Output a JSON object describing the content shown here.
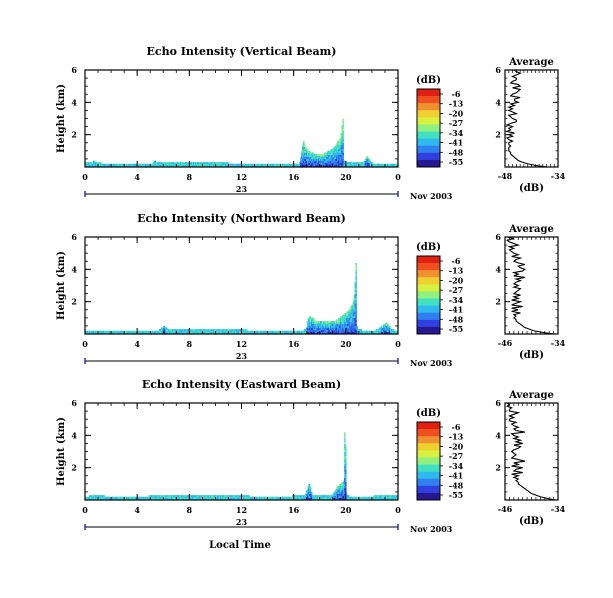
{
  "figure": {
    "bottom_xlabel": "Local Time"
  },
  "colorscale": {
    "unit_label": "(dB)",
    "tick_labels": [
      "-6",
      "-13",
      "-20",
      "-27",
      "-34",
      "-41",
      "-48",
      "-55"
    ],
    "colors": [
      "#e02010",
      "#f05020",
      "#f09030",
      "#f0d030",
      "#d8f040",
      "#90f080",
      "#40e0c0",
      "#30b8f0",
      "#3080f0",
      "#3040e0",
      "#281890"
    ]
  },
  "chart_data": [
    {
      "type": "heatmap",
      "title": "Echo Intensity (Vertical Beam)",
      "ylabel": "Height (km)",
      "ylim": [
        0,
        6
      ],
      "yticks": [
        "2",
        "4",
        "6"
      ],
      "xlim": [
        0,
        24
      ],
      "xticks": [
        "0",
        "4",
        "8",
        "12",
        "16",
        "20",
        "0"
      ],
      "date_label": "23",
      "date_suffix": "Nov 2003",
      "top_height_km": [
        0.3,
        0.3,
        0.3,
        0.3,
        0.3,
        0.3,
        0.3,
        0.2,
        0.4,
        0.4,
        0.3,
        0.3,
        0.3,
        0.3,
        0.3,
        0.3,
        0.2,
        0.2,
        0.2,
        0.2,
        0.2,
        0.2,
        0.2,
        0.2,
        0.2,
        0.2,
        0.2,
        0.2,
        0.2,
        0.2,
        0.2,
        0.2,
        0.2,
        0.2,
        0.2,
        0.2,
        0.2,
        0.2,
        0.2,
        0.2,
        0.2,
        0.2,
        0.2,
        0.2,
        0.2,
        0.2,
        0.2,
        0.2,
        0.2,
        0.2,
        0.2,
        0.2,
        0.2,
        0.2,
        0.2,
        0.2,
        0.2,
        0.2,
        0.2,
        0.2,
        0.2,
        0.2,
        0.2,
        0.2,
        0.2,
        0.2,
        0.2,
        0.3,
        0.4,
        0.4,
        0.3,
        0.3,
        0.3,
        0.3,
        0.3,
        0.3,
        0.3,
        0.3,
        0.3,
        0.3,
        0.3,
        0.3,
        0.3,
        0.3,
        0.3,
        0.3,
        0.3,
        0.3,
        0.3,
        0.3,
        0.3,
        0.3,
        0.3,
        0.3,
        0.3,
        0.3,
        0.3,
        0.3,
        0.3,
        0.3,
        0.3,
        0.3,
        0.3,
        0.3,
        0.3,
        0.3,
        0.3,
        0.3,
        0.3,
        0.3,
        0.3,
        0.3,
        0.3,
        0.3,
        0.3,
        0.3,
        0.3,
        0.3,
        0.3,
        0.3,
        0.3,
        0.3,
        0.3,
        0.3,
        0.3,
        0.3,
        0.3,
        0.3,
        0.3,
        0.3,
        0.3,
        0.3,
        0.3,
        0.3,
        0.3,
        0.3,
        0.3,
        0.3,
        0.3,
        0.3,
        0.3,
        0.3,
        0.2,
        0.2,
        0.2,
        0.2,
        0.2,
        0.2,
        0.2,
        0.2,
        0.2,
        0.2,
        0.2,
        0.2,
        0.2,
        0.2,
        0.2,
        0.2,
        0.2,
        0.2,
        0.2,
        0.2,
        0.2,
        0.2,
        0.2,
        0.2,
        0.2,
        0.2,
        0.2,
        0.2,
        0.2,
        0.2,
        0.2,
        0.2,
        0.2,
        0.2,
        0.2,
        0.2,
        0.2,
        0.2,
        0.2,
        0.2,
        0.2,
        0.2,
        0.2,
        0.2,
        0.2,
        0.2,
        0.2,
        0.2,
        0.2,
        0.2,
        0.2,
        0.2,
        0.2,
        0.2,
        0.2,
        0.2,
        0.2,
        0.2,
        0.2,
        0.2,
        0.2,
        0.2,
        0.2,
        0.2,
        0.2,
        0.2,
        0.2,
        0.2,
        0.2,
        0.2,
        0.3,
        0.6,
        1.0,
        1.4,
        1.6,
        1.4,
        1.2,
        1.2,
        1.1,
        1.0,
        1.0,
        0.9,
        0.9,
        0.9,
        0.8,
        0.8,
        0.8,
        0.8,
        0.8,
        0.8,
        0.8,
        0.8,
        0.8,
        0.8,
        0.8,
        0.9,
        0.9,
        0.9,
        1.0,
        1.0,
        1.0,
        1.1,
        1.1,
        1.2,
        1.2,
        1.3,
        1.4,
        1.5,
        1.6,
        1.7,
        1.8,
        2.1,
        2.6,
        3.0,
        0.4,
        0.3,
        0.3,
        0.3,
        0.3,
        0.3,
        0.3,
        0.3,
        0.3,
        0.3,
        0.3,
        0.3,
        0.3,
        0.3,
        0.3,
        0.3,
        0.3,
        0.3,
        0.3,
        0.3,
        0.4,
        0.5,
        0.6,
        0.7,
        0.6,
        0.5,
        0.4,
        0.3,
        0.3,
        0.2,
        0.2,
        0.2,
        0.2,
        0.2,
        0.2,
        0.2,
        0.2,
        0.2,
        0.2,
        0.2,
        0.2,
        0.2,
        0.2,
        0.2,
        0.2,
        0.2,
        0.2,
        0.2,
        0.2,
        0.2,
        0.2,
        0.2,
        0.2,
        0.2
      ],
      "profile": {
        "title": "Average",
        "xlabel": "(dB)",
        "xlim": [
          -48,
          -34
        ],
        "xticks": [
          "-48",
          "-34"
        ],
        "yticks": [
          "2",
          "4",
          "6"
        ],
        "ylim": [
          0,
          6
        ],
        "values": [
          -37.0,
          -40.0,
          -42.0,
          -43.5,
          -44.5,
          -45.0,
          -45.5,
          -46.0,
          -46.5,
          -46.5,
          -47.0,
          -47.0,
          -47.0,
          -46.5,
          -47.0,
          -47.0,
          -46.0,
          -47.0,
          -47.5,
          -46.0,
          -47.0,
          -45.5,
          -47.5,
          -46.5,
          -47.0,
          -46.0,
          -47.5,
          -46.5,
          -45.0,
          -45.0,
          -46.0,
          -46.5,
          -47.0,
          -45.0,
          -46.0,
          -47.0,
          -46.0,
          -47.0,
          -45.5,
          -46.5,
          -44.5,
          -45.5,
          -45.5,
          -44.0,
          -46.5,
          -46.0,
          -45.0,
          -44.5,
          -44.0,
          -46.0,
          -44.0,
          -44.5,
          -46.5,
          -46.0,
          -45.0,
          -45.0,
          -46.0,
          -45.0,
          -44.0,
          -45.0,
          -45.5
        ]
      }
    },
    {
      "type": "heatmap",
      "title": "Echo Intensity (Northward Beam)",
      "ylabel": "Height (km)",
      "ylim": [
        0,
        6
      ],
      "yticks": [
        "2",
        "4",
        "6"
      ],
      "xlim": [
        0,
        24
      ],
      "xticks": [
        "0",
        "4",
        "8",
        "12",
        "16",
        "20",
        "0"
      ],
      "date_label": "23",
      "date_suffix": "Nov 2003",
      "top_height_km": [
        0.2,
        0.2,
        0.2,
        0.2,
        0.2,
        0.2,
        0.2,
        0.2,
        0.2,
        0.2,
        0.2,
        0.2,
        0.2,
        0.2,
        0.2,
        0.2,
        0.2,
        0.2,
        0.2,
        0.2,
        0.2,
        0.2,
        0.2,
        0.2,
        0.2,
        0.2,
        0.2,
        0.2,
        0.2,
        0.2,
        0.2,
        0.2,
        0.2,
        0.2,
        0.2,
        0.2,
        0.2,
        0.2,
        0.2,
        0.2,
        0.2,
        0.2,
        0.2,
        0.2,
        0.2,
        0.2,
        0.2,
        0.2,
        0.2,
        0.2,
        0.2,
        0.2,
        0.2,
        0.2,
        0.2,
        0.2,
        0.2,
        0.2,
        0.2,
        0.2,
        0.2,
        0.2,
        0.2,
        0.2,
        0.2,
        0.2,
        0.2,
        0.2,
        0.2,
        0.2,
        0.2,
        0.2,
        0.2,
        0.3,
        0.3,
        0.4,
        0.4,
        0.5,
        0.5,
        0.4,
        0.4,
        0.3,
        0.3,
        0.3,
        0.3,
        0.3,
        0.3,
        0.3,
        0.3,
        0.3,
        0.3,
        0.3,
        0.3,
        0.3,
        0.3,
        0.3,
        0.3,
        0.3,
        0.3,
        0.3,
        0.3,
        0.3,
        0.3,
        0.3,
        0.3,
        0.3,
        0.3,
        0.3,
        0.3,
        0.3,
        0.3,
        0.3,
        0.3,
        0.3,
        0.3,
        0.3,
        0.3,
        0.3,
        0.3,
        0.3,
        0.3,
        0.3,
        0.3,
        0.3,
        0.3,
        0.3,
        0.3,
        0.3,
        0.3,
        0.3,
        0.3,
        0.3,
        0.3,
        0.3,
        0.3,
        0.3,
        0.3,
        0.3,
        0.3,
        0.3,
        0.3,
        0.3,
        0.3,
        0.3,
        0.3,
        0.3,
        0.3,
        0.3,
        0.3,
        0.3,
        0.3,
        0.3,
        0.3,
        0.3,
        0.3,
        0.3,
        0.3,
        0.3,
        0.3,
        0.3,
        0.2,
        0.2,
        0.2,
        0.2,
        0.2,
        0.2,
        0.2,
        0.2,
        0.2,
        0.2,
        0.2,
        0.2,
        0.2,
        0.2,
        0.2,
        0.2,
        0.2,
        0.2,
        0.2,
        0.2,
        0.2,
        0.2,
        0.2,
        0.2,
        0.2,
        0.2,
        0.2,
        0.2,
        0.2,
        0.2,
        0.2,
        0.2,
        0.2,
        0.2,
        0.2,
        0.2,
        0.2,
        0.2,
        0.2,
        0.2,
        0.2,
        0.2,
        0.2,
        0.2,
        0.2,
        0.2,
        0.2,
        0.2,
        0.2,
        0.2,
        0.2,
        0.2,
        0.2,
        0.2,
        0.2,
        0.2,
        0.3,
        0.3,
        0.4,
        0.8,
        1.0,
        1.1,
        1.1,
        1.0,
        1.0,
        1.0,
        0.9,
        0.8,
        0.8,
        0.8,
        0.8,
        0.8,
        0.8,
        0.8,
        0.8,
        0.8,
        0.8,
        0.8,
        0.8,
        0.8,
        0.8,
        0.8,
        0.8,
        0.8,
        0.8,
        0.8,
        0.8,
        0.8,
        0.9,
        0.9,
        1.0,
        1.0,
        1.1,
        1.1,
        1.2,
        1.2,
        1.3,
        1.3,
        1.4,
        1.4,
        1.5,
        1.6,
        1.7,
        1.8,
        2.0,
        2.4,
        3.2,
        4.4,
        0.5,
        0.3,
        0.3,
        0.3,
        0.3,
        0.2,
        0.2,
        0.2,
        0.2,
        0.2,
        0.2,
        0.2,
        0.2,
        0.2,
        0.2,
        0.2,
        0.2,
        0.2,
        0.2,
        0.3,
        0.3,
        0.3,
        0.4,
        0.4,
        0.5,
        0.5,
        0.6,
        0.6,
        0.7,
        0.7,
        0.7,
        0.6,
        0.5,
        0.4,
        0.3,
        0.3,
        0.3,
        0.2,
        0.2,
        0.2,
        0.2
      ],
      "profile": {
        "title": "Average",
        "xlabel": "(dB)",
        "xlim": [
          -46,
          -34
        ],
        "xticks": [
          "-46",
          "-34"
        ],
        "yticks": [
          "2",
          "4",
          "6"
        ],
        "ylim": [
          0,
          6
        ],
        "values": [
          -35.0,
          -37.5,
          -39.5,
          -40.5,
          -41.5,
          -42.0,
          -42.5,
          -43.0,
          -43.5,
          -43.5,
          -44.0,
          -43.5,
          -44.0,
          -42.5,
          -44.5,
          -43.0,
          -44.5,
          -42.0,
          -44.5,
          -43.5,
          -42.5,
          -44.5,
          -43.0,
          -44.0,
          -42.5,
          -44.0,
          -43.5,
          -43.0,
          -42.5,
          -44.0,
          -43.0,
          -44.0,
          -43.5,
          -42.5,
          -43.5,
          -41.5,
          -44.0,
          -43.0,
          -44.0,
          -42.0,
          -41.5,
          -42.5,
          -43.0,
          -41.5,
          -43.0,
          -44.0,
          -43.5,
          -42.5,
          -44.5,
          -43.0,
          -44.0,
          -44.5,
          -45.0,
          -44.0,
          -45.0,
          -43.0,
          -44.0,
          -45.0,
          -45.5,
          -44.0,
          -45.5
        ]
      }
    },
    {
      "type": "heatmap",
      "title": "Echo Intensity (Eastward Beam)",
      "ylabel": "Height (km)",
      "ylim": [
        0,
        6
      ],
      "yticks": [
        "2",
        "4",
        "6"
      ],
      "xlim": [
        0,
        24
      ],
      "xticks": [
        "0",
        "4",
        "8",
        "12",
        "16",
        "20",
        "0"
      ],
      "date_label": "23",
      "date_suffix": "Nov 2003",
      "top_height_km": [
        0.2,
        0.2,
        0.2,
        0.2,
        0.3,
        0.3,
        0.3,
        0.3,
        0.3,
        0.3,
        0.3,
        0.3,
        0.3,
        0.3,
        0.3,
        0.3,
        0.3,
        0.3,
        0.3,
        0.3,
        0.2,
        0.2,
        0.2,
        0.2,
        0.2,
        0.2,
        0.2,
        0.2,
        0.2,
        0.2,
        0.2,
        0.2,
        0.2,
        0.2,
        0.2,
        0.2,
        0.2,
        0.2,
        0.2,
        0.2,
        0.2,
        0.2,
        0.2,
        0.2,
        0.2,
        0.2,
        0.2,
        0.2,
        0.2,
        0.2,
        0.2,
        0.2,
        0.2,
        0.2,
        0.2,
        0.2,
        0.2,
        0.2,
        0.2,
        0.2,
        0.2,
        0.2,
        0.2,
        0.2,
        0.2,
        0.3,
        0.3,
        0.3,
        0.3,
        0.3,
        0.3,
        0.3,
        0.3,
        0.3,
        0.3,
        0.3,
        0.3,
        0.3,
        0.3,
        0.3,
        0.3,
        0.3,
        0.3,
        0.3,
        0.3,
        0.3,
        0.3,
        0.3,
        0.3,
        0.3,
        0.3,
        0.3,
        0.3,
        0.3,
        0.3,
        0.3,
        0.3,
        0.3,
        0.3,
        0.3,
        0.3,
        0.3,
        0.3,
        0.3,
        0.3,
        0.3,
        0.3,
        0.3,
        0.3,
        0.3,
        0.3,
        0.3,
        0.3,
        0.3,
        0.3,
        0.3,
        0.3,
        0.3,
        0.3,
        0.3,
        0.3,
        0.3,
        0.3,
        0.3,
        0.3,
        0.3,
        0.3,
        0.3,
        0.3,
        0.3,
        0.3,
        0.3,
        0.3,
        0.3,
        0.3,
        0.3,
        0.3,
        0.3,
        0.3,
        0.3,
        0.3,
        0.3,
        0.3,
        0.3,
        0.3,
        0.3,
        0.3,
        0.3,
        0.3,
        0.3,
        0.3,
        0.3,
        0.3,
        0.3,
        0.3,
        0.3,
        0.3,
        0.3,
        0.3,
        0.3,
        0.3,
        0.3,
        0.3,
        0.3,
        0.3,
        0.3,
        0.3,
        0.3,
        0.2,
        0.2,
        0.2,
        0.2,
        0.2,
        0.2,
        0.2,
        0.2,
        0.2,
        0.2,
        0.2,
        0.2,
        0.2,
        0.2,
        0.2,
        0.2,
        0.2,
        0.2,
        0.2,
        0.2,
        0.2,
        0.2,
        0.2,
        0.2,
        0.2,
        0.2,
        0.2,
        0.2,
        0.2,
        0.2,
        0.2,
        0.2,
        0.2,
        0.2,
        0.2,
        0.2,
        0.2,
        0.2,
        0.2,
        0.2,
        0.2,
        0.2,
        0.2,
        0.2,
        0.3,
        0.3,
        0.3,
        0.3,
        0.3,
        0.3,
        0.3,
        0.3,
        0.3,
        0.3,
        0.3,
        0.3,
        0.3,
        0.4,
        0.6,
        0.8,
        1.0,
        1.0,
        0.8,
        0.5,
        0.3,
        0.3,
        0.3,
        0.3,
        0.3,
        0.3,
        0.3,
        0.3,
        0.3,
        0.3,
        0.3,
        0.3,
        0.3,
        0.3,
        0.3,
        0.3,
        0.3,
        0.3,
        0.3,
        0.3,
        0.3,
        0.4,
        0.5,
        0.6,
        0.7,
        0.8,
        0.9,
        0.9,
        1.0,
        1.0,
        1.1,
        1.1,
        1.2,
        4.2,
        3.4,
        0.4,
        0.3,
        0.3,
        0.2,
        0.2,
        0.2,
        0.2,
        0.2,
        0.2,
        0.2,
        0.2,
        0.2,
        0.2,
        0.2,
        0.2,
        0.2,
        0.2,
        0.2,
        0.2,
        0.2,
        0.2,
        0.2,
        0.2,
        0.2,
        0.2,
        0.2,
        0.2,
        0.2,
        0.3,
        0.3,
        0.3,
        0.3,
        0.3,
        0.3,
        0.3,
        0.3,
        0.3,
        0.3,
        0.3,
        0.3,
        0.3,
        0.3,
        0.3,
        0.3,
        0.3,
        0.3,
        0.3,
        0.3,
        0.3,
        0.3,
        0.3,
        0.3,
        0.3
      ],
      "profile": {
        "title": "Average",
        "xlabel": "(dB)",
        "xlim": [
          -46,
          -34
        ],
        "xticks": [
          "-46",
          "-34"
        ],
        "yticks": [
          "2",
          "4",
          "6"
        ],
        "ylim": [
          0,
          6
        ],
        "values": [
          -34.5,
          -36.5,
          -38.0,
          -39.0,
          -40.0,
          -40.5,
          -41.0,
          -41.5,
          -42.0,
          -42.5,
          -43.0,
          -43.0,
          -43.5,
          -43.0,
          -44.0,
          -43.0,
          -44.5,
          -42.0,
          -44.0,
          -43.5,
          -42.0,
          -44.5,
          -43.0,
          -44.0,
          -41.5,
          -43.0,
          -44.5,
          -44.0,
          -43.5,
          -44.0,
          -44.5,
          -44.0,
          -43.0,
          -42.5,
          -44.0,
          -42.0,
          -43.5,
          -42.5,
          -44.0,
          -43.0,
          -44.0,
          -44.5,
          -41.5,
          -43.5,
          -44.0,
          -43.0,
          -44.0,
          -44.5,
          -43.5,
          -45.0,
          -45.0,
          -44.0,
          -45.0,
          -44.0,
          -43.0,
          -45.0,
          -45.0,
          -44.5,
          -45.5,
          -45.0,
          -45.5
        ]
      }
    }
  ]
}
